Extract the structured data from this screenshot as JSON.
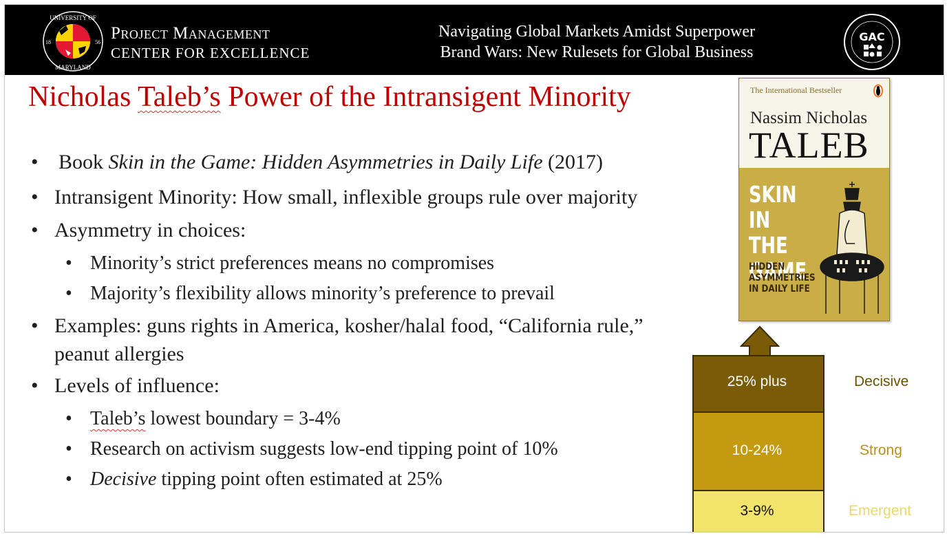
{
  "header": {
    "seal_text_top": "UNIVERSITY OF",
    "seal_text_bottom": "MARYLAND",
    "seal_year_left": "18",
    "seal_year_right": "56",
    "org_line1": "Project Management",
    "org_line2": "CENTER FOR EXCELLENCE",
    "conference_title_line1": "Navigating Global Markets Amidst Superpower",
    "conference_title_line2": "Brand Wars: New Rulesets for Global Business",
    "logo_letters": "GAC"
  },
  "slide": {
    "title_word1": "Nicholas",
    "title_word2": "Taleb’s",
    "title_rest": "Power of the Intransigent Minority",
    "bullets": [
      {
        "prefix": "Book ",
        "italic": "Skin in the Game: Hidden Asymmetries in Daily Life",
        "suffix": " (2017)"
      },
      {
        "text": "Intransigent Minority: How small, inflexible groups rule over majority"
      },
      {
        "text": "Asymmetry in choices:"
      },
      {
        "text": "Minority’s strict preferences means no compromises"
      },
      {
        "text": "Majority’s flexibility allows minority’s preference to prevail"
      },
      {
        "line1": "Examples: guns rights in America, kosher/halal food, “California rule,”",
        "line2": "peanut allergies"
      },
      {
        "text": "Levels of influence:"
      },
      {
        "word": "Taleb’s",
        "rest": " lowest boundary = 3-4%"
      },
      {
        "text": "Research on activism suggests low-end tipping point of 10%"
      },
      {
        "italic": "Decisive",
        "rest": " tipping point often estimated at 25%"
      }
    ],
    "bullet_char": "•"
  },
  "book_cover": {
    "tagline": "The International Bestseller",
    "author_first": "Nassim Nicholas",
    "author_last": "TALEB",
    "title_lines": [
      "SKIN",
      "IN THE",
      "GAME"
    ],
    "subtitle_lines": [
      "HIDDEN",
      "ASYMMETRIES",
      "IN DAILY LIFE"
    ]
  },
  "tiers": [
    {
      "range": "25% plus",
      "level": "Decisive",
      "fill": "#7a5c08",
      "level_color": "#6b5200"
    },
    {
      "range": "10-24%",
      "level": "Strong",
      "fill": "#c49a10",
      "level_color": "#b8901a"
    },
    {
      "range": "3-9%",
      "level": "Emergent",
      "fill": "#f2e46a",
      "level_color": "#e8d870"
    }
  ]
}
